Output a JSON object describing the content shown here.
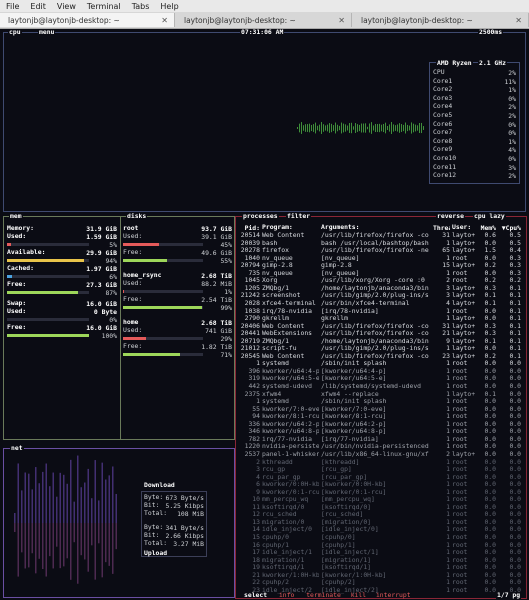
{
  "window": {
    "menu": [
      "File",
      "Edit",
      "View",
      "Terminal",
      "Tabs",
      "Help"
    ]
  },
  "tabs": [
    "laytonjb@laytonjb-desktop: ~",
    "laytonjb@laytonjb-desktop: ~",
    "laytonjb@laytonjb-desktop: ~"
  ],
  "cpu": {
    "label": "cpu",
    "menu_label": "menu",
    "clock": "07:31:06 AM",
    "interval": "2500ms",
    "model": "AMD Ryzen",
    "freq": "2.1 GHz",
    "cores": [
      {
        "name": "CPU",
        "pct": "2%"
      },
      {
        "name": "Core1",
        "pct": "11%"
      },
      {
        "name": "Core2",
        "pct": "1%"
      },
      {
        "name": "Core3",
        "pct": "0%"
      },
      {
        "name": "Core4",
        "pct": "2%"
      },
      {
        "name": "Core5",
        "pct": "2%"
      },
      {
        "name": "Core6",
        "pct": "0%"
      },
      {
        "name": "Core7",
        "pct": "0%"
      },
      {
        "name": "Core8",
        "pct": "1%"
      },
      {
        "name": "Core9",
        "pct": "4%"
      },
      {
        "name": "Core10",
        "pct": "0%"
      },
      {
        "name": "Core11",
        "pct": "3%"
      },
      {
        "name": "Core12",
        "pct": "2%"
      }
    ]
  },
  "mem": {
    "label": "mem",
    "memory": {
      "label": "Memory:",
      "value": "31.9 GiB"
    },
    "used": {
      "label": "Used:",
      "value": "1.59 GiB",
      "pct": "5%",
      "frac": 0.05
    },
    "available": {
      "label": "Available:",
      "value": "29.9 GiB",
      "pct": "94%",
      "frac": 0.94
    },
    "cached": {
      "label": "Cached:",
      "value": "1.97 GiB",
      "pct": "6%",
      "frac": 0.06
    },
    "free": {
      "label": "Free:",
      "value": "27.3 GiB",
      "pct": "87%",
      "frac": 0.87
    },
    "swap": {
      "label": "Swap:",
      "value": "16.0 GiB"
    },
    "swap_used": {
      "label": "Used:",
      "value": "0 Byte",
      "pct": "0%",
      "frac": 0
    },
    "swap_free": {
      "label": "Free:",
      "value": "16.0 GiB",
      "pct": "100%",
      "frac": 1.0
    }
  },
  "disks": {
    "label": "disks",
    "items": [
      {
        "name": "root",
        "total": "93.7 GiB",
        "used_label": "Used:",
        "used": "39.1 GiB",
        "used_pct": "45%",
        "used_frac": 0.45,
        "free_label": "Free:",
        "free": "49.6 GiB",
        "free_pct": "55%",
        "free_frac": 0.55
      },
      {
        "name": "home_rsync",
        "total": "2.68 TiB",
        "used_label": "Used:",
        "used": "88.2 MiB",
        "used_pct": "1%",
        "used_frac": 0.01,
        "free_label": "Free:",
        "free": "2.54 TiB",
        "free_pct": "99%",
        "free_frac": 0.99
      },
      {
        "name": "home",
        "total": "2.68 TiB",
        "used_label": "Used:",
        "used": "741 GiB",
        "used_pct": "29%",
        "used_frac": 0.29,
        "free_label": "Free:",
        "free": "1.82 TiB",
        "free_pct": "71%",
        "free_frac": 0.71
      }
    ]
  },
  "net": {
    "label": "net",
    "download_title": "Download",
    "upload_title": "Upload",
    "down": {
      "byte_label": "Byte:",
      "byte": "673 Byte/s",
      "bit_label": "Bit:",
      "bit": "5.25 Kibps",
      "total_label": "Total:",
      "total": "108 MiB"
    },
    "up": {
      "byte_label": "Byte:",
      "byte": "341 Byte/s",
      "bit_label": "Bit:",
      "bit": "2.66 Kibps",
      "total_label": "Total:",
      "total": "3.27 MiB"
    }
  },
  "proc": {
    "label": "processes",
    "filter_label": "filter",
    "reverse_label": "reverse",
    "sort_label": "cpu lazy",
    "columns": {
      "pid": "Pid:",
      "program": "Program:",
      "args": "Arguments:",
      "threads": "Threads:",
      "user": "User:",
      "mem": "Mem%",
      "cpu": "▼Cpu%"
    },
    "rows": [
      [
        "20514",
        "Web Content",
        "/usr/lib/firefox/firefox -co",
        "31",
        "layto+",
        "0.6",
        "0.5"
      ],
      [
        "20039",
        "bash",
        "bash /usr/local/bashtop/bash",
        "1",
        "layto+",
        "0.0",
        "0.5"
      ],
      [
        "20278",
        "firefox",
        "/usr/lib/firefox/firefox -ne",
        "65",
        "layto+",
        "1.5",
        "0.4"
      ],
      [
        "1040",
        "nv_queue",
        "[nv_queue]",
        "1",
        "root",
        "0.0",
        "0.3"
      ],
      [
        "20794",
        "gimp-2.8",
        "gimp-2.8",
        "15",
        "layto+",
        "0.2",
        "0.3"
      ],
      [
        "735",
        "nv_queue",
        "[nv_queue]",
        "1",
        "root",
        "0.0",
        "0.3"
      ],
      [
        "1045",
        "Xorg",
        "/usr/lib/xorg/Xorg -core :0",
        "2",
        "root",
        "0.2",
        "0.2"
      ],
      [
        "1205",
        "ZMQbg/1",
        "/home/laytonjb/anaconda3/bin",
        "3",
        "layto+",
        "0.3",
        "0.1"
      ],
      [
        "21242",
        "screenshot",
        "/usr/lib/gimp/2.0/plug-ins/s",
        "3",
        "layto+",
        "0.1",
        "0.1"
      ],
      [
        "2028",
        "xfce4-terminal",
        "/usr/bin/xfce4-terminal",
        "4",
        "layto+",
        "0.1",
        "0.1"
      ],
      [
        "1038",
        "irq/78-nvidia",
        "[irq/78-nvidia]",
        "1",
        "root",
        "0.0",
        "0.1"
      ],
      [
        "2790",
        "gkrellm",
        "gkrellm",
        "1",
        "layto+",
        "0.0",
        "0.1"
      ],
      [
        "20406",
        "Web Content",
        "/usr/lib/firefox/firefox -co",
        "31",
        "layto+",
        "0.3",
        "0.1"
      ],
      [
        "20441",
        "WebExtensions",
        "/usr/lib/firefox/firefox -co",
        "21",
        "layto+",
        "0.3",
        "0.1"
      ],
      [
        "20719",
        "ZMQbg/1",
        "/home/laytonjb/anaconda3/bin",
        "9",
        "layto+",
        "0.1",
        "0.1"
      ],
      [
        "21012",
        "script-fu",
        "/usr/lib/gimp/2.0/plug-ins/s",
        "1",
        "layto+",
        "0.0",
        "0.1"
      ],
      [
        "20545",
        "Web Content",
        "/usr/lib/firefox/firefox -co",
        "23",
        "layto+",
        "0.2",
        "0.1"
      ],
      [
        "1",
        "systemd",
        "/sbin/init splash",
        "1",
        "root",
        "0.0",
        "0.0"
      ],
      [
        "396",
        "kworker/u64:4-p",
        "[kworker/u64:4-p]",
        "1",
        "root",
        "0.0",
        "0.0"
      ],
      [
        "319",
        "kworker/u64:5-e",
        "[kworker/u64:5-e]",
        "1",
        "root",
        "0.0",
        "0.0"
      ],
      [
        "442",
        "systemd-udevd",
        "/lib/systemd/systemd-udevd",
        "1",
        "root",
        "0.0",
        "0.0"
      ],
      [
        "2375",
        "xfwm4",
        "xfwm4 --replace",
        "1",
        "layto+",
        "0.1",
        "0.0"
      ],
      [
        "1",
        "systemd",
        "/sbin/init splash",
        "1",
        "root",
        "0.0",
        "0.0"
      ],
      [
        "55",
        "kworker/7:0-eve",
        "[kworker/7:0-eve]",
        "1",
        "root",
        "0.0",
        "0.0"
      ],
      [
        "94",
        "kworker/8:1-rcu",
        "[kworker/8:1-rcu]",
        "1",
        "root",
        "0.0",
        "0.0"
      ],
      [
        "336",
        "kworker/u64:2-p",
        "[kworker/u64:2-p]",
        "1",
        "root",
        "0.0",
        "0.0"
      ],
      [
        "346",
        "kworker/u64:8-p",
        "[kworker/u64:8-p]",
        "1",
        "root",
        "0.0",
        "0.0"
      ],
      [
        "782",
        "irq/77-nvidia",
        "[irq/77-nvidia]",
        "1",
        "root",
        "0.0",
        "0.0"
      ],
      [
        "1220",
        "nvidia-persiste",
        "/usr/bin/nvidia-persistenced",
        "1",
        "root",
        "0.0",
        "0.0"
      ],
      [
        "2537",
        "panel-1-whisker",
        "/usr/lib/x86_64-linux-gnu/xf",
        "2",
        "layto+",
        "0.0",
        "0.0"
      ],
      [
        "2",
        "kthreadd",
        "[kthreadd]",
        "1",
        "root",
        "0.0",
        "0.0"
      ],
      [
        "3",
        "rcu_gp",
        "[rcu_gp]",
        "1",
        "root",
        "0.0",
        "0.0"
      ],
      [
        "4",
        "rcu_par_gp",
        "[rcu_par_gp]",
        "1",
        "root",
        "0.0",
        "0.0"
      ],
      [
        "6",
        "kworker/0:0H-kb",
        "[kworker/0:0H-kb]",
        "1",
        "root",
        "0.0",
        "0.0"
      ],
      [
        "9",
        "kworker/0:1-rcu",
        "[kworker/0:1-rcu]",
        "1",
        "root",
        "0.0",
        "0.0"
      ],
      [
        "10",
        "mm_percpu_wq",
        "[mm_percpu_wq]",
        "1",
        "root",
        "0.0",
        "0.0"
      ],
      [
        "11",
        "ksoftirqd/0",
        "[ksoftirqd/0]",
        "1",
        "root",
        "0.0",
        "0.0"
      ],
      [
        "12",
        "rcu_sched",
        "[rcu_sched]",
        "1",
        "root",
        "0.0",
        "0.0"
      ],
      [
        "13",
        "migration/0",
        "[migration/0]",
        "1",
        "root",
        "0.0",
        "0.0"
      ],
      [
        "14",
        "idle_inject/0",
        "[idle_inject/0]",
        "1",
        "root",
        "0.0",
        "0.0"
      ],
      [
        "15",
        "cpuhp/0",
        "[cpuhp/0]",
        "1",
        "root",
        "0.0",
        "0.0"
      ],
      [
        "16",
        "cpuhp/1",
        "[cpuhp/1]",
        "1",
        "root",
        "0.0",
        "0.0"
      ],
      [
        "17",
        "idle_inject/1",
        "[idle_inject/1]",
        "1",
        "root",
        "0.0",
        "0.0"
      ],
      [
        "18",
        "migration/1",
        "[migration/1]",
        "1",
        "root",
        "0.0",
        "0.0"
      ],
      [
        "19",
        "ksoftirqd/1",
        "[ksoftirqd/1]",
        "1",
        "root",
        "0.0",
        "0.0"
      ],
      [
        "21",
        "kworker/1:0H-kb",
        "[kworker/1:0H-kb]",
        "1",
        "root",
        "0.0",
        "0.0"
      ],
      [
        "22",
        "cpuhp/2",
        "[cpuhp/2]",
        "1",
        "root",
        "0.0",
        "0.0"
      ],
      [
        "23",
        "idle_inject/2",
        "[idle_inject/2]",
        "1",
        "root",
        "0.0",
        "0.0"
      ]
    ],
    "footer": {
      "select": "select",
      "info": "info",
      "terminate": "terminate",
      "kill": "kill",
      "interrupt": "interrupt",
      "page": "1/7 pg"
    }
  }
}
